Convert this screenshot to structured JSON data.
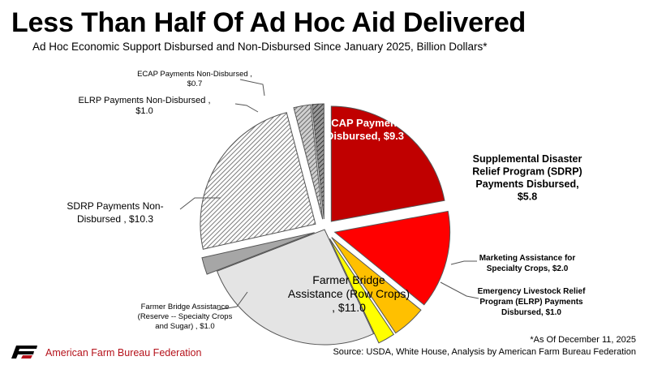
{
  "header": {
    "title": "Less Than Half Of Ad Hoc Aid Delivered",
    "subtitle": "Ad Hoc Economic Support Disbursed and Non-Disbursed Since January 2025, Billion Dollars*"
  },
  "chart_data": {
    "type": "pie",
    "title": "Less Than Half Of Ad Hoc Aid Delivered",
    "subtitle": "Ad Hoc Economic Support Disbursed and Non-Disbursed Since January 2025, Billion Dollars*",
    "unit": "Billion Dollars",
    "slices": [
      {
        "name": "ECAP Payments Disbursed",
        "value": 9.3,
        "label_lines": [
          "ECAP Payments",
          "Disbursed,  $9.3"
        ],
        "color": "#c00000",
        "fill": "solid",
        "exploded": true
      },
      {
        "name": "Supplemental Disaster Relief Program (SDRP) Payments Disbursed",
        "value": 5.8,
        "label_lines": [
          "Supplemental Disaster",
          "Relief Program (SDRP)",
          "Payments Disbursed,",
          "$5.8"
        ],
        "color": "#ff0000",
        "fill": "solid",
        "exploded": true
      },
      {
        "name": "Marketing Assistance for Specialty Crops",
        "value": 2.0,
        "label_lines": [
          "Marketing Assistance for",
          "Specialty Crops,  $2.0"
        ],
        "color": "#ffc000",
        "fill": "solid",
        "exploded": true
      },
      {
        "name": "Emergency Livestock Relief Program (ELRP) Payments Disbursed",
        "value": 1.0,
        "label_lines": [
          "Emergency Livestock Relief",
          "Program (ELRP) Payments",
          "Disbursed,  $1.0"
        ],
        "color": "#ffff00",
        "fill": "solid",
        "exploded": true
      },
      {
        "name": "Farmer Bridge Assistance (Row Crops)",
        "value": 11.0,
        "label_lines": [
          "Farmer Bridge",
          "Assistance (Row Crops)",
          ",  $11.0"
        ],
        "color": "#e4e4e4",
        "fill": "solid",
        "exploded": false
      },
      {
        "name": "Farmer Bridge Assistance (Reserve -- Specialty Crops and Sugar)",
        "value": 1.0,
        "label_lines": [
          "Farmer Bridge Assistance",
          "(Reserve -- Specialty Crops",
          "and Sugar) ,  $1.0"
        ],
        "color": "#a6a6a6",
        "fill": "solid",
        "exploded": true
      },
      {
        "name": "SDRP Payments Non-Disbursed",
        "value": 10.3,
        "label_lines": [
          "SDRP Payments Non-",
          "Disbursed ,  $10.3"
        ],
        "color": "#bfbfbf",
        "fill": "hatched",
        "exploded": true
      },
      {
        "name": "ELRP Payments Non-Disbursed",
        "value": 1.0,
        "label_lines": [
          "ELRP Payments Non-Disbursed ,",
          "$1.0"
        ],
        "color": "#8c8c8c",
        "fill": "hatched",
        "exploded": true
      },
      {
        "name": "ECAP Payments Non-Disbursed",
        "value": 0.7,
        "label_lines": [
          "ECAP Payments Non-Disbursed ,",
          "$0.7"
        ],
        "color": "#595959",
        "fill": "hatched",
        "exploded": true
      }
    ],
    "start_angle_deg": 0,
    "direction": "clockwise",
    "legend": "none"
  },
  "footer": {
    "organization": "American Farm Bureau Federation",
    "footnote": "*As Of December 11, 2025",
    "source": "Source: USDA, White House, Analysis by American Farm Bureau Federation",
    "logo_color": "#b5121b"
  }
}
